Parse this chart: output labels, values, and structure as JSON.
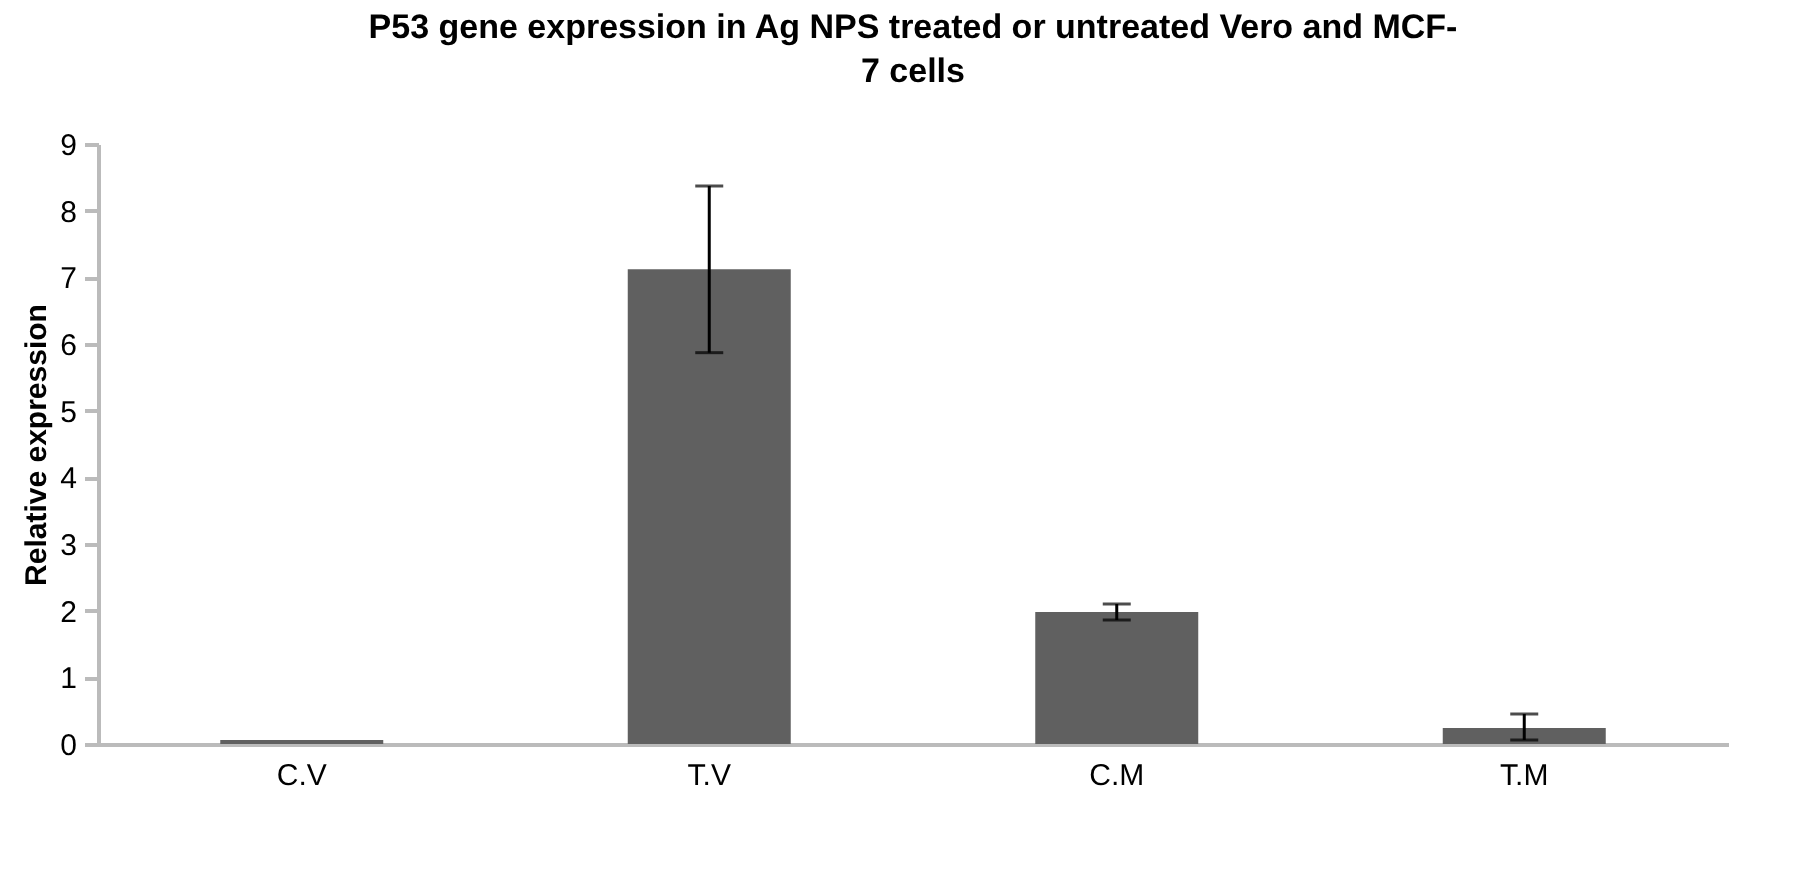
{
  "chart_data": {
    "type": "bar",
    "title": "P53 gene expression in Ag NPS treated or untreated Vero and MCF-7 cells",
    "ylabel": "Relative expression",
    "categories": [
      "C.V",
      "T.V",
      "C.M",
      "T.M"
    ],
    "values": [
      0.06,
      7.12,
      1.98,
      0.24
    ],
    "errors": [
      null,
      1.25,
      0.12,
      [
        0.06,
        0.45
      ]
    ],
    "color": "#606060",
    "ylim": [
      0,
      9
    ],
    "yticks": [
      0,
      1,
      2,
      3,
      4,
      5,
      6,
      7,
      8,
      9
    ],
    "grid": false
  }
}
